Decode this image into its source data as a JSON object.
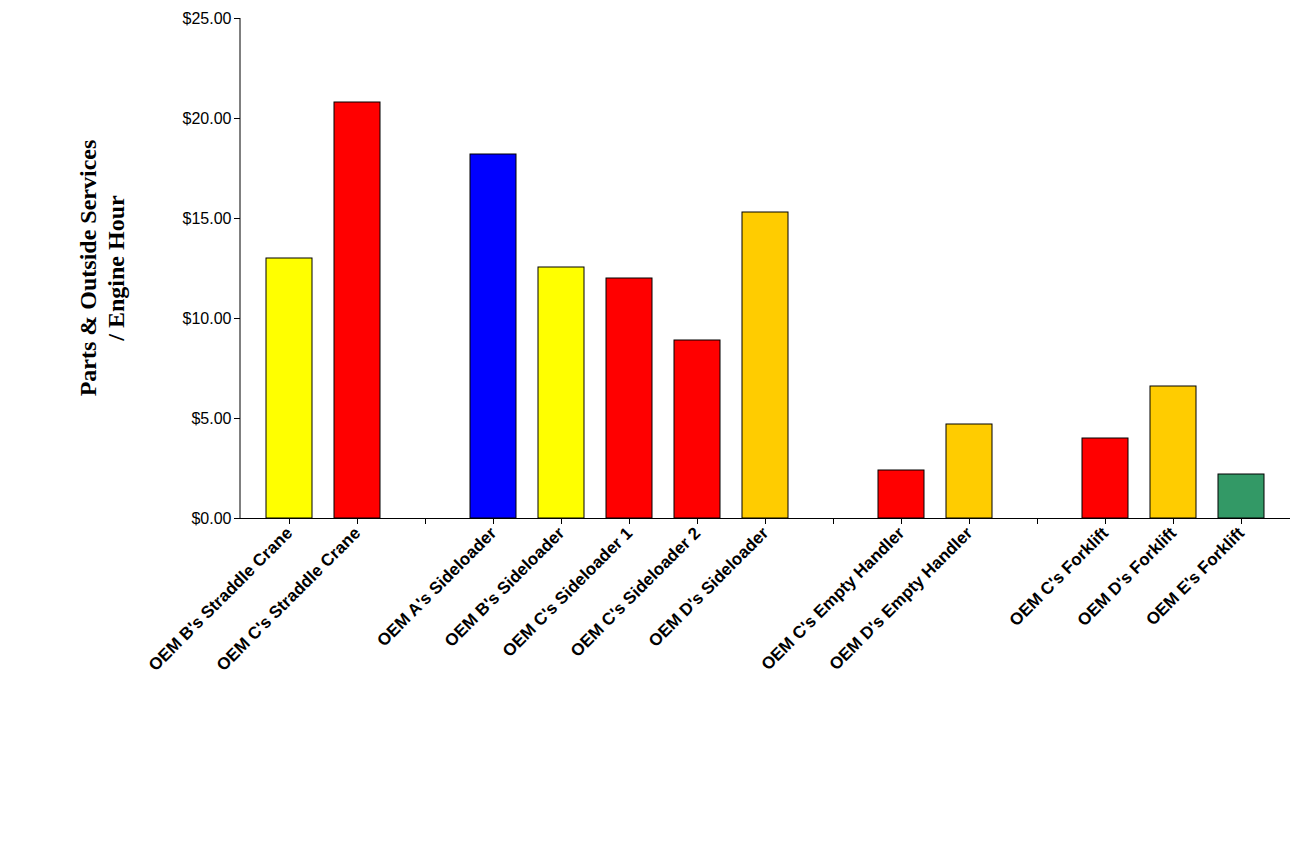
{
  "chart_data": {
    "type": "bar",
    "y_label": "Parts & Outside Services / Engine Hour",
    "categories": [
      "OEM B's Straddle Crane",
      "OEM C's Straddle Crane",
      null,
      "OEM A's Sideloader",
      "OEM B's Sideloader",
      "OEM C's Sideloader 1",
      "OEM C's Sideloader 2",
      "OEM D's Sideloader",
      null,
      "OEM C's Empty Handler",
      "OEM D's Empty Handler",
      null,
      "OEM C's Forklift",
      "OEM D's Forklift",
      "OEM E's Forklift"
    ],
    "values": [
      13.0,
      20.8,
      null,
      18.2,
      12.55,
      12.0,
      8.9,
      15.3,
      null,
      2.4,
      4.7,
      null,
      4.0,
      6.6,
      2.2
    ],
    "colors": [
      "#ffff00",
      "#ff0000",
      null,
      "#0000ff",
      "#ffff00",
      "#ff0000",
      "#ff0000",
      "#ffcc00",
      null,
      "#ff0000",
      "#ffcc00",
      null,
      "#ff0000",
      "#ffcc00",
      "#339966"
    ],
    "ylim": [
      0,
      25
    ],
    "yticks": [
      {
        "value": 0,
        "label": "$0.00"
      },
      {
        "value": 5,
        "label": "$5.00"
      },
      {
        "value": 10,
        "label": "$10.00"
      },
      {
        "value": 15,
        "label": "$15.00"
      },
      {
        "value": 20,
        "label": "$20.00"
      },
      {
        "value": 25,
        "label": "$25.00"
      }
    ],
    "grid": false
  }
}
